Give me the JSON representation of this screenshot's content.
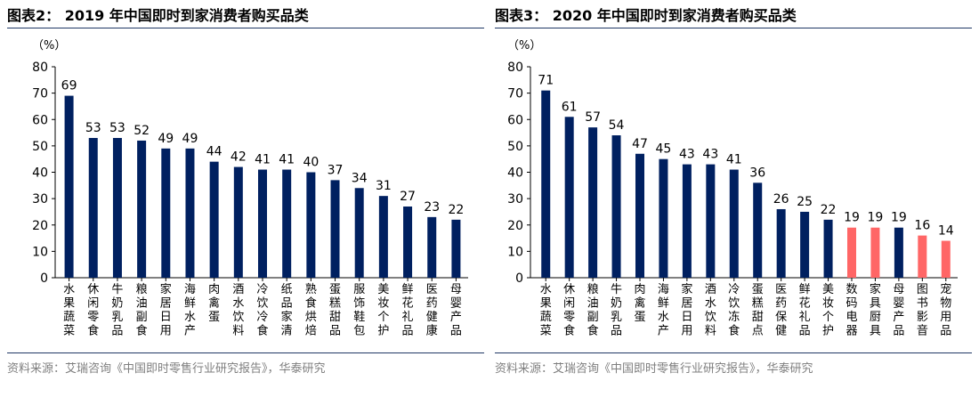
{
  "left": {
    "title": "图表2：  2019 年中国即时到家消费者购买品类",
    "unit": "（%）",
    "source": "资料来源：艾瑞咨询《中国即时零售行业研究报告》，华泰研究"
  },
  "right": {
    "title": "图表3：  2020 年中国即时到家消费者购买品类",
    "unit": "（%）",
    "source": "资料来源：艾瑞咨询《中国即时零售行业研究报告》，华泰研究"
  },
  "chart_data": [
    {
      "type": "bar",
      "title": "2019 年中国即时到家消费者购买品类",
      "ylabel": "（%）",
      "ylim": [
        0,
        80
      ],
      "yticks": [
        0,
        10,
        20,
        30,
        40,
        50,
        60,
        70,
        80
      ],
      "categories": [
        "水果蔬菜",
        "休闲零食",
        "牛奶乳品",
        "粮油副食",
        "家居日用",
        "海鲜水产",
        "肉禽蛋",
        "酒水饮料",
        "冷饮冷食",
        "纸品家清",
        "熟食烘焙",
        "蛋糕甜品",
        "服饰鞋包",
        "美妆个护",
        "鲜花礼品",
        "医药健康",
        "母婴产品"
      ],
      "values": [
        69,
        53,
        53,
        52,
        49,
        49,
        44,
        42,
        41,
        41,
        40,
        37,
        34,
        31,
        27,
        23,
        22
      ],
      "colors": [
        "#002060",
        "#002060",
        "#002060",
        "#002060",
        "#002060",
        "#002060",
        "#002060",
        "#002060",
        "#002060",
        "#002060",
        "#002060",
        "#002060",
        "#002060",
        "#002060",
        "#002060",
        "#002060",
        "#002060"
      ],
      "grid": false,
      "legend": false
    },
    {
      "type": "bar",
      "title": "2020 年中国即时到家消费者购买品类",
      "ylabel": "（%）",
      "ylim": [
        0,
        80
      ],
      "yticks": [
        0,
        10,
        20,
        30,
        40,
        50,
        60,
        70,
        80
      ],
      "categories": [
        "水果蔬菜",
        "休闲零食",
        "粮油副食",
        "牛奶乳品",
        "肉禽蛋",
        "海鲜水产",
        "家居日用",
        "酒水饮料",
        "冷饮冻食",
        "蛋糕甜点",
        "医药保健",
        "鲜花礼品",
        "美妆个护",
        "数码电器",
        "家具厨具",
        "母婴产品",
        "图书影音",
        "宠物用品"
      ],
      "values": [
        71,
        61,
        57,
        54,
        47,
        45,
        43,
        43,
        41,
        36,
        26,
        25,
        22,
        19,
        19,
        19,
        16,
        14
      ],
      "colors": [
        "#002060",
        "#002060",
        "#002060",
        "#002060",
        "#002060",
        "#002060",
        "#002060",
        "#002060",
        "#002060",
        "#002060",
        "#002060",
        "#002060",
        "#002060",
        "#FF6666",
        "#FF6666",
        "#002060",
        "#FF6666",
        "#FF6666"
      ],
      "grid": false,
      "legend": false
    }
  ]
}
